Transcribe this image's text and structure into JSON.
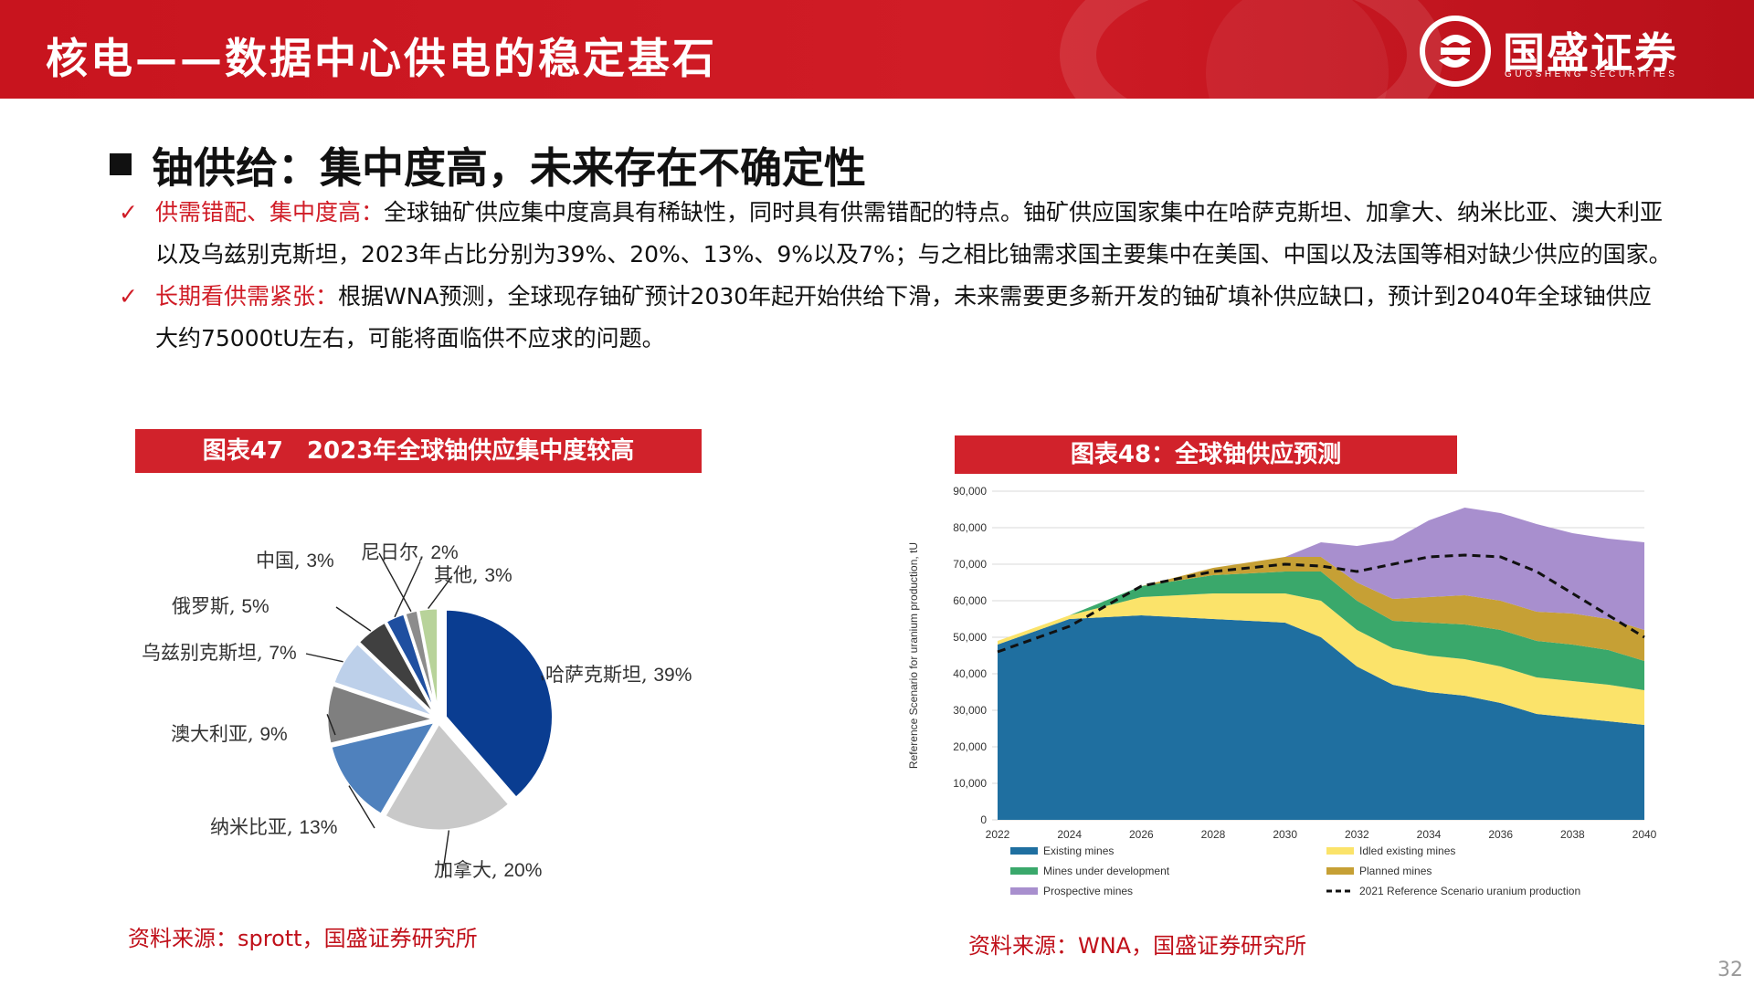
{
  "header": {
    "title": "核电——数据中心供电的稳定基石",
    "brand_name": "国盛证券",
    "brand_sub": "GUOSHENG SECURITIES"
  },
  "section": {
    "title": "铀供给：集中度高，未来存在不确定性"
  },
  "bullets": [
    {
      "check": "✓",
      "highlight": "供需错配、集中度高：",
      "text": "全球铀矿供应集中度高具有稀缺性，同时具有供需错配的特点。铀矿供应国家集中在哈萨克斯坦、加拿大、纳米比亚、澳大利亚以及乌兹别克斯坦，2023年占比分别为39%、20%、13%、9%以及7%；与之相比铀需求国主要集中在美国、中国以及法国等相对缺少供应的国家。"
    },
    {
      "check": "✓",
      "highlight": "长期看供需紧张：",
      "text": "根据WNA预测，全球现存铀矿预计2030年起开始供给下滑，未来需要更多新开发的铀矿填补供应缺口，预计到2040年全球铀供应大约75000tU左右，可能将面临供不应求的问题。"
    }
  ],
  "left_chart": {
    "title": "图表47　2023年全球铀供应集中度较高",
    "source": "资料来源：sprott，国盛证券研究所"
  },
  "right_chart": {
    "title": "图表48：全球铀供应预测",
    "source": "资料来源：WNA，国盛证券研究所"
  },
  "page_number": "32",
  "chart_data": [
    {
      "type": "pie",
      "slices": [
        {
          "name": "哈萨克斯坦",
          "value": 39,
          "label": "39%",
          "color": "#0a3d91"
        },
        {
          "name": "加拿大",
          "value": 20,
          "label": "20%",
          "color": "#c9c9c9"
        },
        {
          "name": "纳米比亚",
          "value": 13,
          "label": "13%",
          "color": "#4f81bd"
        },
        {
          "name": "澳大利亚",
          "value": 9,
          "label": "9%",
          "color": "#7f7f7f"
        },
        {
          "name": "乌兹别克斯坦",
          "value": 7,
          "label": "7%",
          "color": "#bdd0ea"
        },
        {
          "name": "俄罗斯",
          "value": 5,
          "label": "5%",
          "color": "#404040"
        },
        {
          "name": "中国",
          "value": 3,
          "label": "3%",
          "color": "#1f4fa0"
        },
        {
          "name": "尼日尔",
          "value": 2,
          "label": "2%",
          "color": "#8c8c8c"
        },
        {
          "name": "其他",
          "value": 3,
          "label": "3%",
          "color": "#b8d39a"
        }
      ]
    },
    {
      "type": "area",
      "x": [
        2022,
        2024,
        2026,
        2028,
        2030,
        2031,
        2032,
        2033,
        2034,
        2035,
        2036,
        2037,
        2038,
        2039,
        2040
      ],
      "xticks": [
        "2022",
        "2024",
        "2026",
        "2028",
        "2030",
        "2032",
        "2034",
        "2036",
        "2038",
        "2040"
      ],
      "ylim": [
        0,
        90000
      ],
      "yticks": [
        "0",
        "10,000",
        "20,000",
        "30,000",
        "40,000",
        "50,000",
        "60,000",
        "70,000",
        "80,000",
        "90,000"
      ],
      "ylabel": "Reference Scenario for uranium production, tU",
      "grid": true,
      "series": [
        {
          "name": "Existing mines",
          "color": "#1f6fa0",
          "values": [
            48000,
            55000,
            56000,
            55000,
            54000,
            50000,
            42000,
            37000,
            35000,
            34000,
            32000,
            29000,
            28000,
            27000,
            26000
          ]
        },
        {
          "name": "Idled existing mines",
          "color": "#fbe36a",
          "values": [
            1000,
            1000,
            5000,
            7000,
            8000,
            10000,
            10000,
            10000,
            10000,
            10000,
            10000,
            10000,
            10000,
            10000,
            9500
          ]
        },
        {
          "name": "Mines under development",
          "color": "#3aa86b",
          "values": [
            0,
            0,
            3000,
            5000,
            6000,
            8000,
            8000,
            7500,
            9000,
            9500,
            10000,
            10000,
            10000,
            9500,
            8000
          ]
        },
        {
          "name": "Planned mines",
          "color": "#c6a035",
          "values": [
            0,
            0,
            0,
            2000,
            4000,
            4000,
            5000,
            6000,
            7000,
            8000,
            8000,
            8000,
            8500,
            8500,
            8500
          ]
        },
        {
          "name": "Prospective mines",
          "color": "#a88fce",
          "values": [
            0,
            0,
            0,
            0,
            0,
            4000,
            10000,
            16000,
            21000,
            24000,
            24000,
            24000,
            22000,
            22000,
            24000
          ]
        }
      ],
      "line": {
        "name": "2021 Reference Scenario uranium production",
        "color": "#111111",
        "style": "dashed",
        "values": [
          46000,
          53000,
          64000,
          68000,
          70000,
          69500,
          68000,
          70000,
          72000,
          72500,
          72000,
          68000,
          62000,
          56000,
          50000
        ]
      }
    }
  ]
}
